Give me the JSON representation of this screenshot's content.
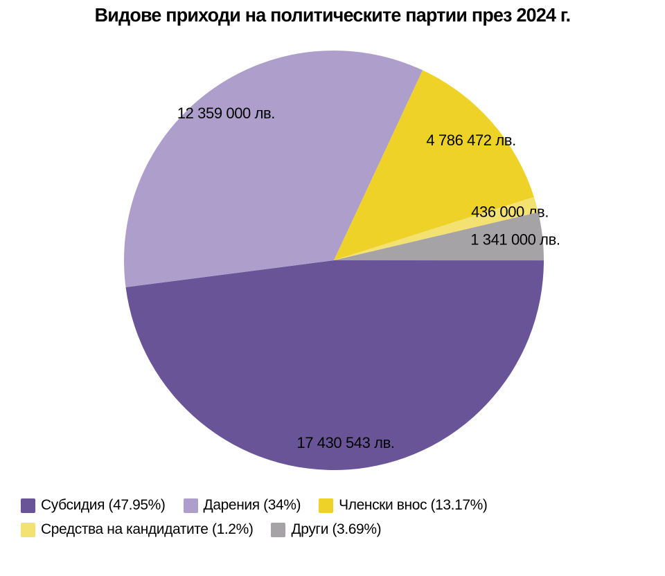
{
  "chart_data": {
    "type": "pie",
    "title": "Видове приходи на политическите партии през 2024 г.",
    "unit": "лв.",
    "background_color": "#ffffff",
    "text_color": "#000000",
    "legend_position": "bottom-left",
    "direction": "clockwise",
    "start_angle_deg_clockwise_from_top": 90,
    "slices": [
      {
        "label": "Субсидия",
        "percent": 47.95,
        "value": 17430543,
        "value_label": "17 430 543 лв.",
        "legend_label": "Субсидия (47.95%)",
        "color": "#6a5498"
      },
      {
        "label": "Дарения",
        "percent": 34,
        "value": 12359000,
        "value_label": "12 359 000 лв.",
        "legend_label": "Дарения (34%)",
        "color": "#ad9ecb"
      },
      {
        "label": "Членски внос",
        "percent": 13.17,
        "value": 4786472,
        "value_label": "4 786 472 лв.",
        "legend_label": "Членски внос (13.17%)",
        "color": "#eed227"
      },
      {
        "label": "Средства на кандидатите",
        "percent": 1.2,
        "value": 436000,
        "value_label": "436 000 лв.",
        "legend_label": "Средства на кандидатите (1.2%)",
        "color": "#f3e272"
      },
      {
        "label": "Други",
        "percent": 3.69,
        "value": 1341000,
        "value_label": "1 341 000 лв.",
        "legend_label": "Други (3.69%)",
        "color": "#a5a3a6"
      }
    ]
  }
}
